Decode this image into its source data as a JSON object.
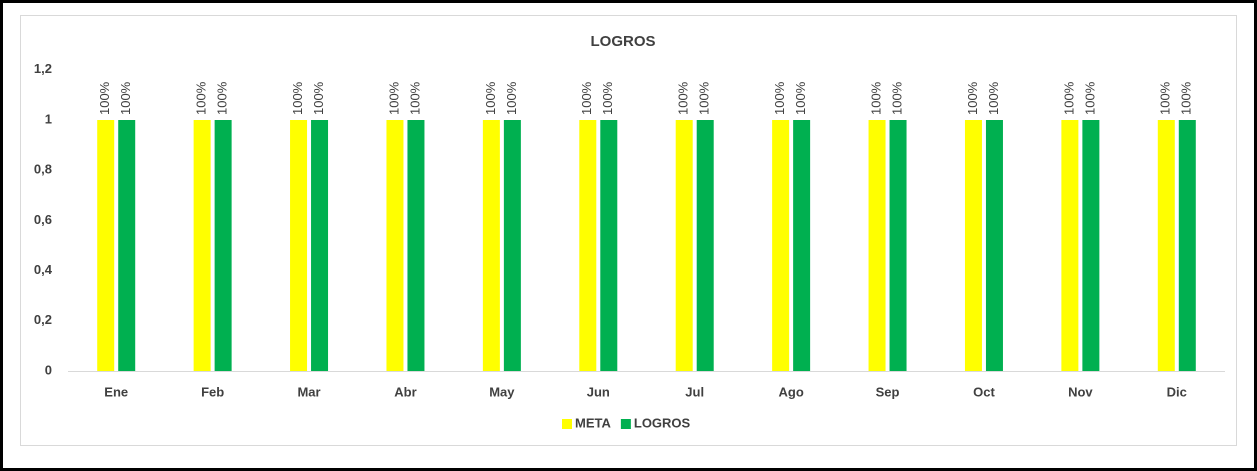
{
  "chart_data": {
    "type": "bar",
    "title": "LOGROS",
    "categories": [
      "Ene",
      "Feb",
      "Mar",
      "Abr",
      "May",
      "Jun",
      "Jul",
      "Ago",
      "Sep",
      "Oct",
      "Nov",
      "Dic"
    ],
    "series": [
      {
        "name": "META",
        "color": "#ffff00",
        "values": [
          1,
          1,
          1,
          1,
          1,
          1,
          1,
          1,
          1,
          1,
          1,
          1
        ],
        "value_labels": [
          "100%",
          "100%",
          "100%",
          "100%",
          "100%",
          "100%",
          "100%",
          "100%",
          "100%",
          "100%",
          "100%",
          "100%"
        ]
      },
      {
        "name": "LOGROS",
        "color": "#00b050",
        "values": [
          1,
          1,
          1,
          1,
          1,
          1,
          1,
          1,
          1,
          1,
          1,
          1
        ],
        "value_labels": [
          "100%",
          "100%",
          "100%",
          "100%",
          "100%",
          "100%",
          "100%",
          "100%",
          "100%",
          "100%",
          "100%",
          "100%"
        ]
      }
    ],
    "ylim": [
      0,
      1.2
    ],
    "yticks": [
      0,
      {
        "value": 0.2,
        "label": "0,2"
      },
      {
        "value": 0.4,
        "label": "0,4"
      },
      {
        "value": 0.6,
        "label": "0,6"
      },
      {
        "value": 0.8,
        "label": "0,8"
      },
      1,
      {
        "value": 1.2,
        "label": "1,2"
      }
    ],
    "grid": false,
    "legend": "bottom"
  }
}
